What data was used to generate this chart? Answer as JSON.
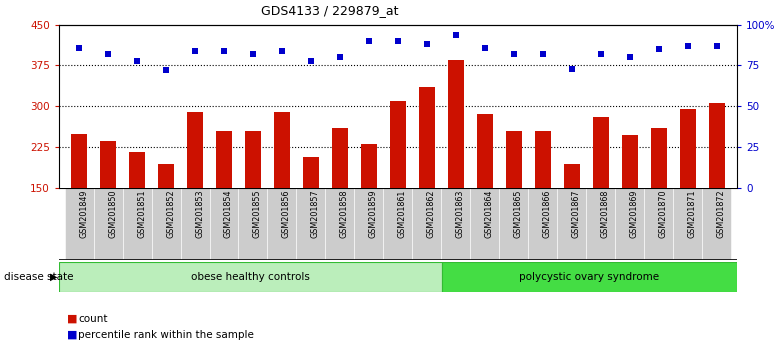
{
  "title": "GDS4133 / 229879_at",
  "samples": [
    "GSM201849",
    "GSM201850",
    "GSM201851",
    "GSM201852",
    "GSM201853",
    "GSM201854",
    "GSM201855",
    "GSM201856",
    "GSM201857",
    "GSM201858",
    "GSM201859",
    "GSM201861",
    "GSM201862",
    "GSM201863",
    "GSM201864",
    "GSM201865",
    "GSM201866",
    "GSM201867",
    "GSM201868",
    "GSM201869",
    "GSM201870",
    "GSM201871",
    "GSM201872"
  ],
  "count_values": [
    248,
    235,
    215,
    193,
    290,
    255,
    255,
    290,
    207,
    260,
    230,
    310,
    335,
    385,
    285,
    255,
    255,
    193,
    280,
    247,
    260,
    295,
    305
  ],
  "percentile_values": [
    86,
    82,
    78,
    72,
    84,
    84,
    82,
    84,
    78,
    80,
    90,
    90,
    88,
    94,
    86,
    82,
    82,
    73,
    82,
    80,
    85,
    87,
    87
  ],
  "group1_label": "obese healthy controls",
  "group2_label": "polycystic ovary syndrome",
  "group1_count": 13,
  "ylim_left": [
    150,
    450
  ],
  "ylim_right": [
    0,
    100
  ],
  "yticks_left": [
    150,
    225,
    300,
    375,
    450
  ],
  "yticks_right": [
    0,
    25,
    50,
    75,
    100
  ],
  "ytick_labels_right": [
    "0",
    "25",
    "50",
    "75",
    "100%"
  ],
  "bar_color": "#cc1100",
  "dot_color": "#0000cc",
  "group1_bg": "#bbeebb",
  "group2_bg": "#44dd44",
  "group_border": "#33bb33",
  "xtick_bg": "#cccccc",
  "legend_count_label": "count",
  "legend_percentile_label": "percentile rank within the sample",
  "disease_state_label": "disease state"
}
